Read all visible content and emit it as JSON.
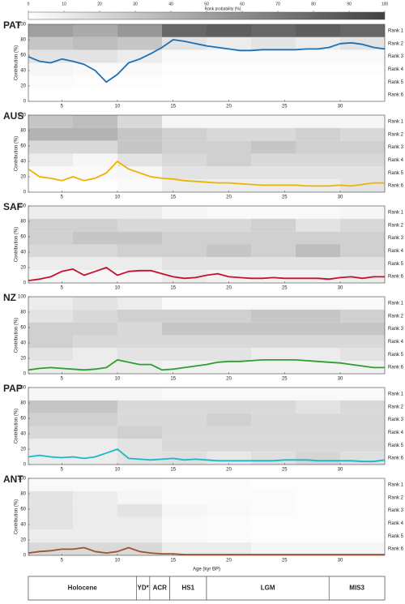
{
  "colorbar": {
    "label": "Rank probability (%)",
    "lim": [
      0,
      100
    ],
    "ticks": [
      0,
      10,
      20,
      30,
      40,
      50,
      60,
      70,
      80,
      90,
      100
    ]
  },
  "xlabel": "Age (kyr BP)",
  "periods": [
    {
      "label": "Holocene",
      "start": 2,
      "end": 11.7
    },
    {
      "label": "YD*",
      "start": 11.7,
      "end": 12.9
    },
    {
      "label": "ACR",
      "start": 12.9,
      "end": 14.7
    },
    {
      "label": "HS1",
      "start": 14.7,
      "end": 18
    },
    {
      "label": "LGM",
      "start": 18,
      "end": 29
    },
    {
      "label": "MIS3",
      "start": 29,
      "end": 34
    }
  ],
  "chart_data": [
    {
      "type": "line",
      "title": "PAT",
      "ylabel": "Contribution (%)",
      "xlim": [
        2,
        34
      ],
      "xticks": [
        5,
        10,
        15,
        20,
        25,
        30
      ],
      "ylim": [
        0,
        100
      ],
      "yticks": [
        0,
        20,
        40,
        60,
        80,
        100
      ],
      "x": [
        2,
        3,
        4,
        5,
        6,
        7,
        8,
        9,
        10,
        11,
        12,
        13,
        14,
        15,
        16,
        17,
        18,
        19,
        20,
        21,
        22,
        23,
        24,
        25,
        26,
        27,
        28,
        29,
        30,
        31,
        32,
        33,
        34
      ],
      "series": [
        {
          "color": "#1a6fb5",
          "values": [
            58,
            52,
            50,
            55,
            52,
            48,
            40,
            25,
            35,
            50,
            55,
            62,
            70,
            80,
            78,
            75,
            72,
            70,
            68,
            66,
            66,
            67,
            67,
            67,
            67,
            68,
            68,
            70,
            75,
            76,
            74,
            70,
            68
          ]
        }
      ],
      "heatmap": {
        "bins": [
          2,
          6,
          10,
          14,
          18,
          22,
          26,
          30,
          34
        ],
        "rows": [
          "Rank 1",
          "Rank 2",
          "Rank 3",
          "Rank 4",
          "Rank 5",
          "Rank 6"
        ],
        "values": [
          [
            50,
            45,
            55,
            80,
            85,
            80,
            85,
            80
          ],
          [
            30,
            35,
            30,
            15,
            10,
            15,
            10,
            15
          ],
          [
            15,
            15,
            10,
            3,
            3,
            3,
            3,
            3
          ],
          [
            5,
            3,
            3,
            1,
            1,
            1,
            1,
            1
          ],
          [
            2,
            1,
            1,
            0,
            0,
            0,
            0,
            0
          ],
          [
            0,
            0,
            0,
            0,
            0,
            0,
            0,
            0
          ]
        ]
      }
    },
    {
      "type": "line",
      "title": "AUS",
      "ylabel": "Contribution (%)",
      "xlim": [
        2,
        34
      ],
      "xticks": [
        5,
        10,
        15,
        20,
        25,
        30
      ],
      "ylim": [
        0,
        100
      ],
      "yticks": [
        0,
        20,
        40,
        60,
        80,
        100
      ],
      "x": [
        2,
        3,
        4,
        5,
        6,
        7,
        8,
        9,
        10,
        11,
        12,
        13,
        14,
        15,
        16,
        17,
        18,
        19,
        20,
        21,
        22,
        23,
        24,
        25,
        26,
        27,
        28,
        29,
        30,
        31,
        32,
        33,
        34
      ],
      "series": [
        {
          "color": "#eeb300",
          "values": [
            30,
            20,
            18,
            15,
            20,
            15,
            18,
            25,
            40,
            30,
            25,
            20,
            18,
            17,
            15,
            14,
            13,
            12,
            12,
            11,
            10,
            9,
            9,
            9,
            9,
            8,
            8,
            8,
            9,
            8,
            10,
            12,
            12
          ]
        }
      ],
      "heatmap": {
        "bins": [
          2,
          6,
          10,
          14,
          18,
          22,
          26,
          30,
          34
        ],
        "rows": [
          "Rank 1",
          "Rank 2",
          "Rank 3",
          "Rank 4",
          "Rank 5",
          "Rank 6"
        ],
        "values": [
          [
            30,
            35,
            20,
            5,
            5,
            5,
            5,
            5
          ],
          [
            40,
            40,
            30,
            25,
            20,
            20,
            25,
            20
          ],
          [
            20,
            20,
            30,
            25,
            25,
            30,
            25,
            25
          ],
          [
            10,
            5,
            15,
            20,
            25,
            20,
            20,
            20
          ],
          [
            3,
            3,
            5,
            15,
            15,
            15,
            15,
            15
          ],
          [
            1,
            1,
            3,
            10,
            10,
            10,
            10,
            15
          ]
        ]
      }
    },
    {
      "type": "line",
      "title": "SAF",
      "ylabel": "Contribution (%)",
      "xlim": [
        2,
        34
      ],
      "xticks": [
        5,
        10,
        15,
        20,
        25,
        30
      ],
      "ylim": [
        0,
        100
      ],
      "yticks": [
        0,
        20,
        40,
        60,
        80,
        100
      ],
      "x": [
        2,
        3,
        4,
        5,
        6,
        7,
        8,
        9,
        10,
        11,
        12,
        13,
        14,
        15,
        16,
        17,
        18,
        19,
        20,
        21,
        22,
        23,
        24,
        25,
        26,
        27,
        28,
        29,
        30,
        31,
        32,
        33,
        34
      ],
      "series": [
        {
          "color": "#c8102e",
          "values": [
            3,
            5,
            8,
            15,
            18,
            10,
            15,
            20,
            10,
            15,
            16,
            16,
            12,
            8,
            6,
            7,
            10,
            12,
            8,
            7,
            6,
            6,
            7,
            6,
            6,
            6,
            6,
            5,
            7,
            8,
            6,
            8,
            8
          ]
        }
      ],
      "heatmap": {
        "bins": [
          2,
          6,
          10,
          14,
          18,
          22,
          26,
          30,
          34
        ],
        "rows": [
          "Rank 1",
          "Rank 2",
          "Rank 3",
          "Rank 4",
          "Rank 5",
          "Rank 6"
        ],
        "values": [
          [
            10,
            10,
            10,
            5,
            3,
            3,
            3,
            5
          ],
          [
            25,
            25,
            20,
            20,
            20,
            25,
            15,
            20
          ],
          [
            25,
            30,
            30,
            25,
            25,
            25,
            25,
            25
          ],
          [
            20,
            20,
            25,
            25,
            30,
            25,
            35,
            25
          ],
          [
            10,
            10,
            10,
            15,
            15,
            15,
            15,
            15
          ],
          [
            5,
            5,
            5,
            10,
            7,
            7,
            7,
            10
          ]
        ]
      }
    },
    {
      "type": "line",
      "title": "NZ",
      "ylabel": "Contribution (%)",
      "xlim": [
        2,
        34
      ],
      "xticks": [
        5,
        10,
        15,
        20,
        25,
        30
      ],
      "ylim": [
        0,
        100
      ],
      "yticks": [
        0,
        20,
        40,
        60,
        80,
        100
      ],
      "x": [
        2,
        3,
        4,
        5,
        6,
        7,
        8,
        9,
        10,
        11,
        12,
        13,
        14,
        15,
        16,
        17,
        18,
        19,
        20,
        21,
        22,
        23,
        24,
        25,
        26,
        27,
        28,
        29,
        30,
        31,
        32,
        33,
        34
      ],
      "series": [
        {
          "color": "#2ca02c",
          "values": [
            5,
            7,
            8,
            7,
            6,
            5,
            6,
            8,
            18,
            15,
            12,
            12,
            5,
            6,
            8,
            10,
            12,
            15,
            16,
            16,
            17,
            18,
            18,
            18,
            18,
            17,
            16,
            15,
            14,
            12,
            10,
            8,
            8
          ]
        }
      ],
      "heatmap": {
        "bins": [
          2,
          6,
          10,
          14,
          18,
          22,
          26,
          30,
          34
        ],
        "rows": [
          "Rank 1",
          "Rank 2",
          "Rank 3",
          "Rank 4",
          "Rank 5",
          "Rank 6"
        ],
        "values": [
          [
            10,
            15,
            10,
            3,
            3,
            3,
            3,
            3
          ],
          [
            15,
            20,
            25,
            25,
            25,
            30,
            30,
            25
          ],
          [
            25,
            25,
            20,
            30,
            30,
            30,
            30,
            30
          ],
          [
            25,
            20,
            20,
            20,
            20,
            20,
            20,
            20
          ],
          [
            15,
            10,
            15,
            15,
            15,
            10,
            10,
            15
          ],
          [
            10,
            10,
            10,
            7,
            7,
            7,
            7,
            7
          ]
        ]
      }
    },
    {
      "type": "line",
      "title": "PAP",
      "ylabel": "Contribution (%)",
      "xlim": [
        2,
        34
      ],
      "xticks": [
        5,
        10,
        15,
        20,
        25,
        30
      ],
      "ylim": [
        0,
        100
      ],
      "yticks": [
        0,
        20,
        40,
        60,
        80,
        100
      ],
      "x": [
        2,
        3,
        4,
        5,
        6,
        7,
        8,
        9,
        10,
        11,
        12,
        13,
        14,
        15,
        16,
        17,
        18,
        19,
        20,
        21,
        22,
        23,
        24,
        25,
        26,
        27,
        28,
        29,
        30,
        31,
        32,
        33,
        34
      ],
      "series": [
        {
          "color": "#17b8c8",
          "values": [
            10,
            12,
            10,
            9,
            10,
            8,
            10,
            15,
            20,
            8,
            7,
            6,
            7,
            8,
            6,
            7,
            6,
            5,
            5,
            5,
            5,
            5,
            5,
            6,
            6,
            6,
            5,
            5,
            5,
            5,
            4,
            4,
            6
          ]
        }
      ],
      "heatmap": {
        "bins": [
          2,
          6,
          10,
          14,
          18,
          22,
          26,
          30,
          34
        ],
        "rows": [
          "Rank 1",
          "Rank 2",
          "Rank 3",
          "Rank 4",
          "Rank 5",
          "Rank 6"
        ],
        "values": [
          [
            5,
            5,
            5,
            3,
            3,
            3,
            3,
            3
          ],
          [
            30,
            30,
            20,
            20,
            20,
            20,
            15,
            20
          ],
          [
            25,
            25,
            20,
            20,
            25,
            20,
            20,
            20
          ],
          [
            20,
            20,
            25,
            20,
            20,
            20,
            20,
            20
          ],
          [
            10,
            10,
            15,
            20,
            20,
            20,
            20,
            20
          ],
          [
            10,
            10,
            15,
            17,
            12,
            17,
            22,
            17
          ]
        ]
      }
    },
    {
      "type": "line",
      "title": "ANT",
      "ylabel": "Contribution (%)",
      "xlim": [
        2,
        34
      ],
      "xticks": [
        5,
        10,
        15,
        20,
        25,
        30
      ],
      "ylim": [
        0,
        100
      ],
      "yticks": [
        0,
        20,
        40,
        60,
        80,
        100
      ],
      "x": [
        2,
        3,
        4,
        5,
        6,
        7,
        8,
        9,
        10,
        11,
        12,
        13,
        14,
        15,
        16,
        17,
        18,
        19,
        20,
        21,
        22,
        23,
        24,
        25,
        26,
        27,
        28,
        29,
        30,
        31,
        32,
        33,
        34
      ],
      "series": [
        {
          "color": "#a0522d",
          "values": [
            3,
            5,
            6,
            8,
            8,
            10,
            5,
            3,
            5,
            10,
            5,
            3,
            2,
            2,
            1,
            1,
            1,
            1,
            1,
            1,
            1,
            1,
            1,
            1,
            1,
            1,
            1,
            1,
            1,
            1,
            1,
            1,
            1
          ]
        }
      ],
      "heatmap": {
        "bins": [
          2,
          6,
          10,
          14,
          18,
          22,
          26,
          30,
          34
        ],
        "rows": [
          "Rank 1",
          "Rank 2",
          "Rank 3",
          "Rank 4",
          "Rank 5",
          "Rank 6"
        ],
        "values": [
          [
            3,
            3,
            3,
            2,
            2,
            1,
            1,
            1
          ],
          [
            15,
            10,
            5,
            2,
            2,
            2,
            1,
            1
          ],
          [
            15,
            10,
            15,
            5,
            3,
            2,
            1,
            1
          ],
          [
            15,
            10,
            10,
            3,
            2,
            1,
            1,
            1
          ],
          [
            10,
            10,
            10,
            3,
            2,
            1,
            1,
            1
          ],
          [
            20,
            20,
            20,
            10,
            10,
            5,
            5,
            5
          ]
        ]
      }
    }
  ]
}
